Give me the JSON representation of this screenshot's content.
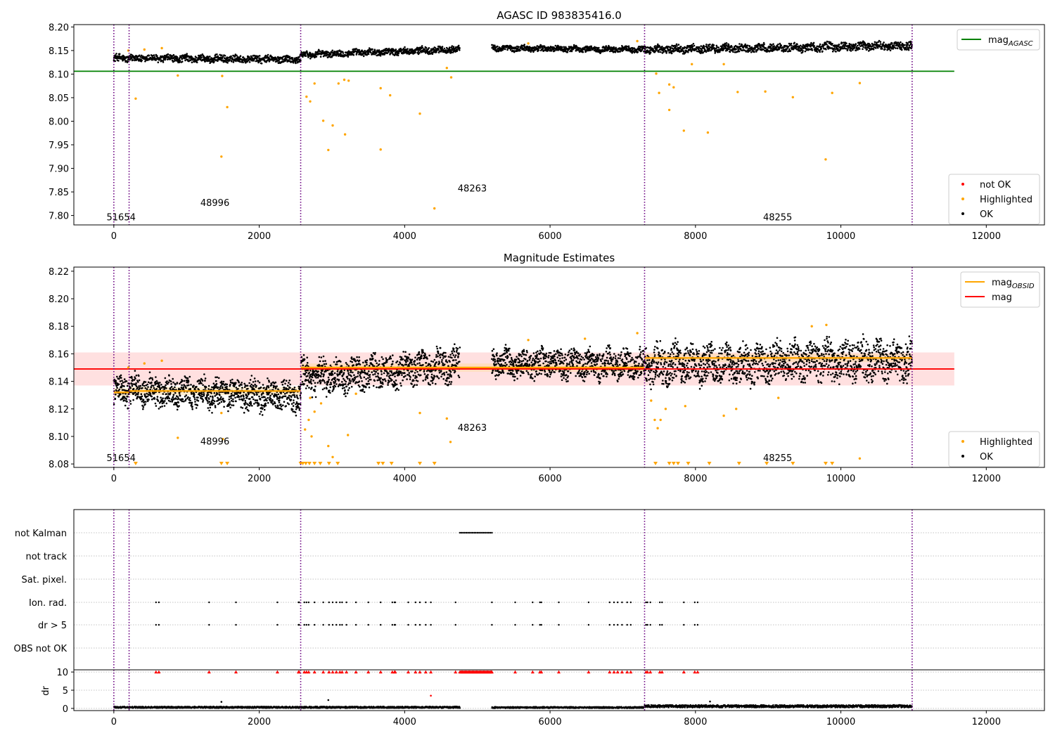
{
  "figure": {
    "type": "matplotlib-figure",
    "colors": {
      "ok": "#000000",
      "highlighted": "#ffa500",
      "not_ok": "#ff0000",
      "agasc_line": "#008000",
      "obsid_line": "#ffa500",
      "mag_line": "#ff0000",
      "mag_band": "#ffcccc",
      "obsid_band": "#ffd9a0",
      "boundary": "#6a0080",
      "grid": "#b0b0b0"
    }
  },
  "chart_data": [
    {
      "type": "scatter",
      "title": "AGASC ID 983835416.0",
      "xlim": [
        -550,
        12800
      ],
      "ylim": [
        7.78,
        8.205
      ],
      "xticks": [
        0,
        2000,
        4000,
        6000,
        8000,
        10000,
        12000
      ],
      "yticks": [
        7.8,
        7.85,
        7.9,
        7.95,
        8.0,
        8.05,
        8.1,
        8.15,
        8.2
      ],
      "ytick_labels": [
        "7.80",
        "7.85",
        "7.90",
        "7.95",
        "8.00",
        "8.05",
        "8.10",
        "8.15",
        "8.20"
      ],
      "obsid_boundaries": [
        0,
        210,
        2570,
        7300,
        10980
      ],
      "obsid_labels": [
        {
          "text": "51654",
          "x": 100,
          "y": 7.79
        },
        {
          "text": "48996",
          "x": 1390,
          "y": 7.82
        },
        {
          "text": "48263",
          "x": 4930,
          "y": 7.851
        },
        {
          "text": "48255",
          "x": 9130,
          "y": 7.79
        }
      ],
      "hlines": [
        {
          "name": "mag_AGASC",
          "y": 8.106,
          "x0": -550,
          "x1": 11560
        }
      ],
      "ok_segments": [
        {
          "x0": 0,
          "x1": 2570,
          "y0": 8.134,
          "y1": 8.131,
          "spread": 0.009
        },
        {
          "x0": 2570,
          "x1": 4760,
          "y0": 8.141,
          "y1": 8.153,
          "spread": 0.008
        },
        {
          "x0": 5200,
          "x1": 7300,
          "y0": 8.155,
          "y1": 8.152,
          "spread": 0.007
        },
        {
          "x0": 7300,
          "x1": 10980,
          "y0": 8.152,
          "y1": 8.16,
          "spread": 0.01
        }
      ],
      "highlighted": [
        [
          300,
          8.048
        ],
        [
          880,
          8.097
        ],
        [
          1480,
          7.925
        ],
        [
          1560,
          8.03
        ],
        [
          1490,
          8.096
        ],
        [
          2650,
          8.052
        ],
        [
          2700,
          8.042
        ],
        [
          2760,
          8.08
        ],
        [
          2880,
          8.001
        ],
        [
          2950,
          7.939
        ],
        [
          3010,
          7.991
        ],
        [
          3090,
          8.08
        ],
        [
          3180,
          7.972
        ],
        [
          3170,
          8.088
        ],
        [
          3230,
          8.086
        ],
        [
          3670,
          8.07
        ],
        [
          3670,
          7.94
        ],
        [
          3800,
          8.055
        ],
        [
          4210,
          8.016
        ],
        [
          4410,
          7.815
        ],
        [
          4640,
          8.093
        ],
        [
          4580,
          8.113
        ],
        [
          7460,
          8.101
        ],
        [
          7500,
          8.06
        ],
        [
          7640,
          8.078
        ],
        [
          7640,
          8.024
        ],
        [
          7700,
          8.072
        ],
        [
          7840,
          7.98
        ],
        [
          8170,
          7.976
        ],
        [
          8580,
          8.062
        ],
        [
          8960,
          8.063
        ],
        [
          9340,
          8.051
        ],
        [
          9790,
          7.919
        ],
        [
          9880,
          8.06
        ],
        [
          10260,
          8.081
        ],
        [
          7950,
          8.121
        ],
        [
          8390,
          8.121
        ],
        [
          200,
          8.15
        ],
        [
          420,
          8.152
        ],
        [
          660,
          8.155
        ],
        [
          5700,
          8.165
        ],
        [
          7200,
          8.17
        ]
      ],
      "legends": [
        {
          "position": "top-right",
          "entries": [
            {
              "label": "mag",
              "subscript": "AGASC",
              "marker": "line",
              "color": "#008000"
            }
          ]
        },
        {
          "position": "bottom-right",
          "entries": [
            {
              "label": "not OK",
              "marker": "dot",
              "color": "#ff0000"
            },
            {
              "label": "Highlighted",
              "marker": "dot",
              "color": "#ffa500"
            },
            {
              "label": "OK",
              "marker": "dot",
              "color": "#000000"
            }
          ]
        }
      ]
    },
    {
      "type": "scatter",
      "title": "Magnitude Estimates",
      "xlim": [
        -550,
        12800
      ],
      "ylim": [
        8.0775,
        8.223
      ],
      "xticks": [
        0,
        2000,
        4000,
        6000,
        8000,
        10000,
        12000
      ],
      "yticks": [
        8.08,
        8.1,
        8.12,
        8.14,
        8.16,
        8.18,
        8.2,
        8.22
      ],
      "ytick_labels": [
        "8.08",
        "8.10",
        "8.12",
        "8.14",
        "8.16",
        "8.18",
        "8.20",
        "8.22"
      ],
      "obsid_boundaries": [
        0,
        210,
        2570,
        7300,
        10980
      ],
      "obsid_labels": [
        {
          "text": "51654",
          "x": 100,
          "y": 8.082
        },
        {
          "text": "48996",
          "x": 1390,
          "y": 8.094
        },
        {
          "text": "48263",
          "x": 4930,
          "y": 8.104
        },
        {
          "text": "48255",
          "x": 9130,
          "y": 8.082
        }
      ],
      "mag": {
        "value": 8.149,
        "band": [
          8.137,
          8.161
        ],
        "x0": -550,
        "x1": 11560
      },
      "mag_obsid": [
        {
          "x0": 0,
          "x1": 210,
          "value": 8.132
        },
        {
          "x0": 210,
          "x1": 2570,
          "value": 8.133
        },
        {
          "x0": 2570,
          "x1": 7300,
          "value": 8.15
        },
        {
          "x0": 7300,
          "x1": 10980,
          "value": 8.157
        }
      ],
      "ok_segments": [
        {
          "x0": 0,
          "x1": 2570,
          "y0": 8.134,
          "y1": 8.129,
          "spread": 0.012
        },
        {
          "x0": 2570,
          "x1": 4760,
          "y0": 8.142,
          "y1": 8.152,
          "spread": 0.014
        },
        {
          "x0": 5200,
          "x1": 7300,
          "y0": 8.153,
          "y1": 8.152,
          "spread": 0.012
        },
        {
          "x0": 7300,
          "x1": 10980,
          "y0": 8.152,
          "y1": 8.156,
          "spread": 0.016
        }
      ],
      "highlighted": [
        [
          880,
          8.099
        ],
        [
          1480,
          8.117
        ],
        [
          1500,
          8.098
        ],
        [
          2630,
          8.105
        ],
        [
          2680,
          8.112
        ],
        [
          2720,
          8.1
        ],
        [
          2760,
          8.118
        ],
        [
          2850,
          8.124
        ],
        [
          2700,
          8.128
        ],
        [
          2950,
          8.093
        ],
        [
          3010,
          8.085
        ],
        [
          3220,
          8.101
        ],
        [
          3330,
          8.131
        ],
        [
          4210,
          8.117
        ],
        [
          4580,
          8.113
        ],
        [
          4630,
          8.096
        ],
        [
          7390,
          8.126
        ],
        [
          7440,
          8.112
        ],
        [
          7520,
          8.112
        ],
        [
          7480,
          8.106
        ],
        [
          7590,
          8.12
        ],
        [
          7860,
          8.122
        ],
        [
          8390,
          8.115
        ],
        [
          8560,
          8.12
        ],
        [
          9140,
          8.128
        ],
        [
          10260,
          8.084
        ],
        [
          200,
          8.15
        ],
        [
          420,
          8.153
        ],
        [
          660,
          8.155
        ],
        [
          5700,
          8.17
        ],
        [
          6480,
          8.171
        ],
        [
          7200,
          8.175
        ],
        [
          9600,
          8.18
        ],
        [
          9800,
          8.181
        ]
      ],
      "censored_x": [
        300,
        1480,
        1560,
        2570,
        2600,
        2640,
        2690,
        2760,
        2840,
        2960,
        3080,
        3640,
        3700,
        3820,
        4210,
        4410,
        7450,
        7640,
        7700,
        7760,
        7900,
        8190,
        8600,
        8980,
        9340,
        9790,
        9880
      ],
      "legends": [
        {
          "position": "top-right",
          "entries": [
            {
              "label": "mag",
              "subscript": "OBSID",
              "marker": "line",
              "color": "#ffa500"
            },
            {
              "label": "mag",
              "marker": "line",
              "color": "#ff0000"
            }
          ]
        },
        {
          "position": "bottom-right",
          "entries": [
            {
              "label": "Highlighted",
              "marker": "dot",
              "color": "#ffa500"
            },
            {
              "label": "OK",
              "marker": "dot",
              "color": "#000000"
            }
          ]
        }
      ]
    },
    {
      "type": "scatter",
      "title": "",
      "xlim": [
        -550,
        12800
      ],
      "flag_rows": [
        "not Kalman",
        "not track",
        "Sat. pixel.",
        "Ion. rad.",
        "dr > 5",
        "OBS not OK"
      ],
      "obsid_boundaries": [
        0,
        210,
        2570,
        7300,
        10980
      ],
      "not_kalman_range": [
        4760,
        5200
      ],
      "ion_rad_x": [
        580,
        620,
        1310,
        1680,
        2250,
        2540,
        2550,
        2620,
        2650,
        2680,
        2760,
        2880,
        2960,
        3010,
        3060,
        3110,
        3140,
        3200,
        3330,
        3500,
        3670,
        3830,
        3860,
        3870,
        4050,
        4150,
        4210,
        4290,
        4360,
        4700,
        5200,
        5520,
        5760,
        5860,
        5880,
        6120,
        6530,
        6820,
        6880,
        6930,
        6990,
        7060,
        7110,
        7320,
        7340,
        7380,
        7510,
        7540,
        7840,
        7990,
        8030
      ],
      "dr_gt5_x": [
        580,
        620,
        1310,
        1680,
        2250,
        2540,
        2550,
        2620,
        2650,
        2680,
        2760,
        2880,
        2960,
        3010,
        3060,
        3110,
        3140,
        3200,
        3330,
        3500,
        3670,
        3830,
        3860,
        3870,
        4050,
        4150,
        4210,
        4290,
        4360,
        4700,
        5200,
        5520,
        5760,
        5860,
        5880,
        6120,
        6530,
        6820,
        6880,
        6930,
        6990,
        7060,
        7110,
        7320,
        7340,
        7380,
        7510,
        7540,
        7840,
        7990,
        8030
      ],
      "dr_panel": {
        "ylabel": "dr",
        "ylim": [
          -0.6,
          10.6
        ],
        "yticks": [
          0,
          5,
          10
        ],
        "ytick_labels": [
          "0",
          "5",
          "10"
        ],
        "clip_value": 10,
        "clipped_red_x": [
          580,
          620,
          1310,
          1680,
          2250,
          2540,
          2550,
          2620,
          2650,
          2680,
          2760,
          2880,
          2960,
          3010,
          3060,
          3110,
          3140,
          3200,
          3330,
          3500,
          3670,
          3830,
          3860,
          3870,
          4050,
          4150,
          4210,
          4290,
          4360,
          4700,
          5200,
          5520,
          5760,
          5860,
          5880,
          6120,
          6530,
          6820,
          6880,
          6930,
          6990,
          7060,
          7110,
          7320,
          7340,
          7380,
          7510,
          7540,
          7840,
          7990,
          8030
        ],
        "red_dense_range": [
          4760,
          5200
        ],
        "extra_points": [
          [
            4360,
            3.5,
            "#ff0000"
          ],
          [
            1480,
            1.8,
            "#000000"
          ],
          [
            2950,
            2.3,
            "#000000"
          ],
          [
            8200,
            1.9,
            "#000000"
          ]
        ],
        "ok_segments": [
          {
            "x0": 0,
            "x1": 2570,
            "level": 0.3,
            "spread": 0.4
          },
          {
            "x0": 2570,
            "x1": 4760,
            "level": 0.3,
            "spread": 0.4
          },
          {
            "x0": 5200,
            "x1": 7300,
            "level": 0.25,
            "spread": 0.35
          },
          {
            "x0": 7300,
            "x1": 10980,
            "level": 0.6,
            "spread": 0.6
          }
        ],
        "xticks": [
          0,
          2000,
          4000,
          6000,
          8000,
          10000,
          12000
        ]
      }
    }
  ]
}
